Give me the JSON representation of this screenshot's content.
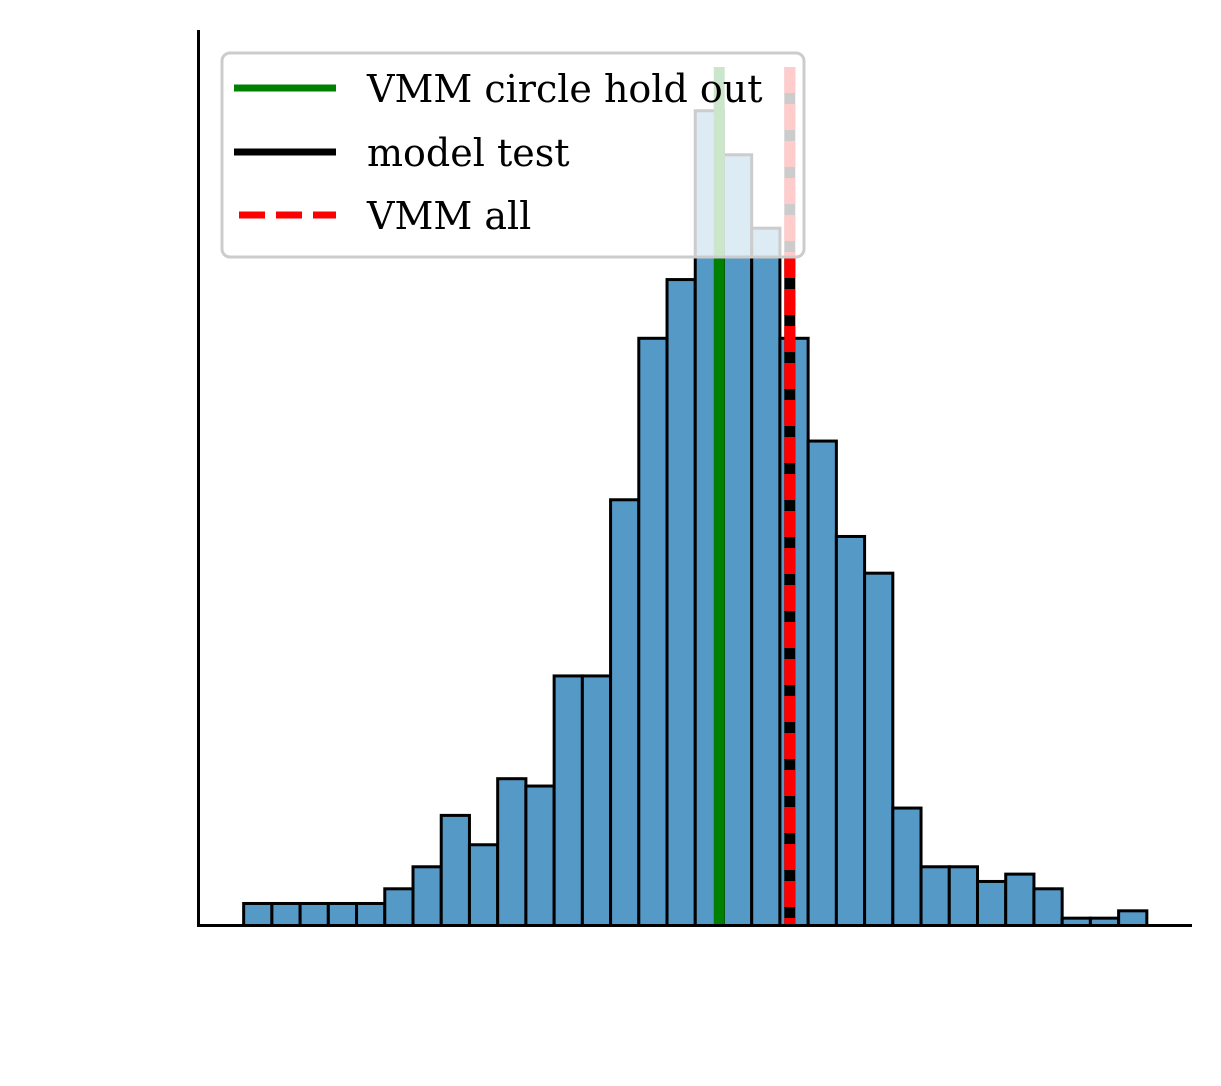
{
  "chart_data": {
    "type": "bar",
    "title": "",
    "xlabel": "",
    "ylabel": "",
    "grid": false,
    "legend_position": "top-left",
    "bar_color": "#5599c7",
    "edge_color": "#000000",
    "bins": [
      {
        "start": 0,
        "end": 1,
        "count": 3
      },
      {
        "start": 1,
        "end": 2,
        "count": 3
      },
      {
        "start": 2,
        "end": 3,
        "count": 3
      },
      {
        "start": 3,
        "end": 4,
        "count": 3
      },
      {
        "start": 4,
        "end": 5,
        "count": 3
      },
      {
        "start": 5,
        "end": 6,
        "count": 5
      },
      {
        "start": 6,
        "end": 7,
        "count": 8
      },
      {
        "start": 7,
        "end": 8,
        "count": 15
      },
      {
        "start": 8,
        "end": 9,
        "count": 11
      },
      {
        "start": 9,
        "end": 10,
        "count": 20
      },
      {
        "start": 10,
        "end": 11,
        "count": 19
      },
      {
        "start": 11,
        "end": 12,
        "count": 34
      },
      {
        "start": 12,
        "end": 13,
        "count": 34
      },
      {
        "start": 13,
        "end": 14,
        "count": 58
      },
      {
        "start": 14,
        "end": 15,
        "count": 80
      },
      {
        "start": 15,
        "end": 16,
        "count": 88
      },
      {
        "start": 16,
        "end": 17,
        "count": 111
      },
      {
        "start": 17,
        "end": 18,
        "count": 105
      },
      {
        "start": 18,
        "end": 19,
        "count": 95
      },
      {
        "start": 19,
        "end": 20,
        "count": 80
      },
      {
        "start": 20,
        "end": 21,
        "count": 66
      },
      {
        "start": 21,
        "end": 22,
        "count": 53
      },
      {
        "start": 22,
        "end": 23,
        "count": 48
      },
      {
        "start": 23,
        "end": 24,
        "count": 16
      },
      {
        "start": 24,
        "end": 25,
        "count": 8
      },
      {
        "start": 25,
        "end": 26,
        "count": 8
      },
      {
        "start": 26,
        "end": 27,
        "count": 6
      },
      {
        "start": 27,
        "end": 28,
        "count": 7
      },
      {
        "start": 28,
        "end": 29,
        "count": 5
      },
      {
        "start": 29,
        "end": 30,
        "count": 1
      },
      {
        "start": 30,
        "end": 31,
        "count": 1
      },
      {
        "start": 31,
        "end": 32,
        "count": 2
      }
    ],
    "xlim": [
      -1.6,
      33.6
    ],
    "ylim": [
      0,
      122
    ],
    "series": [
      {
        "name": "VMM circle hold out",
        "type": "vline",
        "x": 16.85,
        "color": "#008000",
        "style": "solid"
      },
      {
        "name": "model test",
        "type": "vline",
        "x": 19.35,
        "color": "#000000",
        "style": "solid"
      },
      {
        "name": "VMM all",
        "type": "vline",
        "x": 19.35,
        "color": "#ff0000",
        "style": "dashed"
      }
    ],
    "legend": [
      {
        "label": "VMM circle hold out",
        "color": "#008000",
        "style": "solid"
      },
      {
        "label": "model test",
        "color": "#000000",
        "style": "solid"
      },
      {
        "label": "VMM all",
        "color": "#ff0000",
        "style": "dashed"
      }
    ]
  }
}
